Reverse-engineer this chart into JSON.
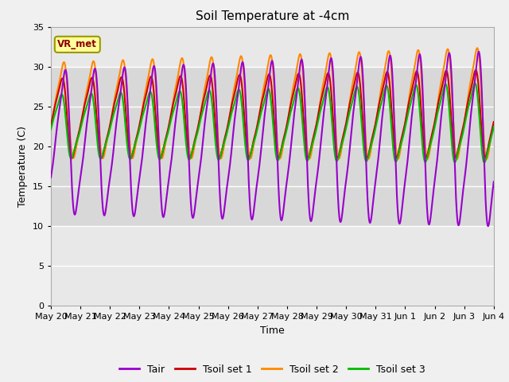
{
  "title": "Soil Temperature at -4cm",
  "xlabel": "Time",
  "ylabel": "Temperature (C)",
  "ylim": [
    0,
    35
  ],
  "yticks": [
    0,
    5,
    10,
    15,
    20,
    25,
    30,
    35
  ],
  "background_color": "#f0f0f0",
  "plot_bg_color": "#e8e8e8",
  "shaded_bg_color": "#d8d8d8",
  "shaded_region": [
    10,
    30
  ],
  "grid_color": "#ffffff",
  "annotation_text": "VR_met",
  "annotation_color": "#8b0000",
  "annotation_bg": "#ffff99",
  "annotation_edge": "#999900",
  "n_days": 15,
  "xlabels": [
    "May 20",
    "May 21",
    "May 22",
    "May 23",
    "May 24",
    "May 25",
    "May 26",
    "May 27",
    "May 28",
    "May 29",
    "May 30",
    "May 31",
    "Jun 1",
    "Jun 2",
    "Jun 3",
    "Jun 4"
  ],
  "colors": {
    "Tair": "#9900cc",
    "Tsoil1": "#cc0000",
    "Tsoil2": "#ff8800",
    "Tsoil3": "#00bb00"
  },
  "legend_labels": [
    "Tair",
    "Tsoil set 1",
    "Tsoil set 2",
    "Tsoil set 3"
  ],
  "linewidth": 1.5
}
